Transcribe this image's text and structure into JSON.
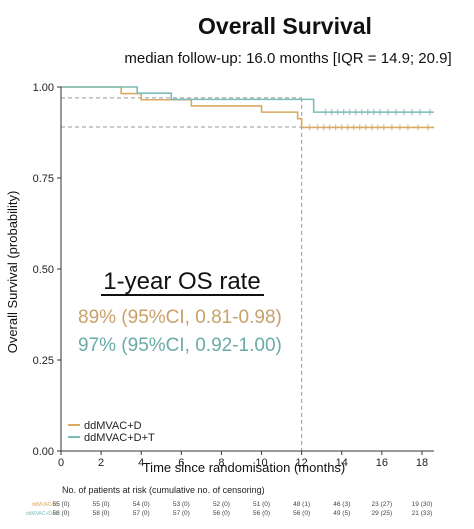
{
  "chart_data": {
    "type": "line",
    "title": "Overall Survival",
    "subtitle": "median follow-up: 16.0 months [IQR = 14.9; 20.9]",
    "xlabel": "Time since randomisation (months)",
    "ylabel": "Overall Survival (probability)",
    "xlim": [
      0,
      18.6
    ],
    "ylim": [
      0,
      1.0
    ],
    "xticks": [
      0,
      2,
      4,
      6,
      8,
      10,
      12,
      14,
      16,
      18
    ],
    "yticks": [
      0,
      0.25,
      0.5,
      0.75,
      1.0
    ],
    "ytick_labels": [
      "0.00",
      "0.25",
      "0.50",
      "0.75",
      "1.00"
    ],
    "grid": false,
    "legend_position": "bottom-left",
    "series": [
      {
        "name": "ddMVAC+D",
        "color": "#d9a964",
        "steps": [
          [
            0,
            1.0
          ],
          [
            3.0,
            0.982
          ],
          [
            4.0,
            0.965
          ],
          [
            6.5,
            0.948
          ],
          [
            10.0,
            0.931
          ],
          [
            11.8,
            0.913
          ],
          [
            12.0,
            0.889
          ],
          [
            18.6,
            0.889
          ]
        ],
        "censor_x": [
          12.4,
          12.8,
          13.1,
          13.4,
          13.7,
          14.0,
          14.3,
          14.6,
          14.9,
          15.2,
          15.5,
          15.8,
          16.1,
          16.5,
          16.9,
          17.3,
          17.8,
          18.3
        ]
      },
      {
        "name": "ddMVAC+D+T",
        "color": "#7bbdb7",
        "steps": [
          [
            0,
            1.0
          ],
          [
            3.8,
            0.983
          ],
          [
            5.5,
            0.966
          ],
          [
            12.5,
            0.966
          ],
          [
            12.6,
            0.931
          ],
          [
            18.6,
            0.931
          ]
        ],
        "censor_x": [
          13.2,
          13.5,
          13.8,
          14.1,
          14.4,
          14.7,
          15.0,
          15.3,
          15.6,
          15.9,
          16.3,
          16.7,
          17.1,
          17.5,
          17.9,
          18.4
        ]
      }
    ],
    "reference_lines": {
      "x": 12,
      "y": [
        0.97,
        0.89
      ]
    }
  },
  "rate_box": {
    "title": "1-year OS rate",
    "lines": [
      {
        "text": "89% (95%CI, 0.81-0.98)",
        "color": "#c9a06a"
      },
      {
        "text": "97% (95%CI, 0.92-1.00)",
        "color": "#6aaba6"
      }
    ]
  },
  "risk_table": {
    "title": "No. of patients at risk (cumulative no. of censoring)",
    "rows": [
      {
        "label": "ddMVAC+D",
        "color": "#d9a964",
        "cells": [
          "55 (0)",
          "55 (0)",
          "54 (0)",
          "53 (0)",
          "52 (0)",
          "51 (0)",
          "48 (1)",
          "46 (3)",
          "23 (27)",
          "19 (30)"
        ]
      },
      {
        "label": "ddMVAC+D+T",
        "color": "#7bbdb7",
        "cells": [
          "58 (0)",
          "58 (0)",
          "57 (0)",
          "57 (0)",
          "56 (0)",
          "56 (0)",
          "56 (0)",
          "49 (5)",
          "29 (25)",
          "21 (33)"
        ]
      }
    ]
  }
}
